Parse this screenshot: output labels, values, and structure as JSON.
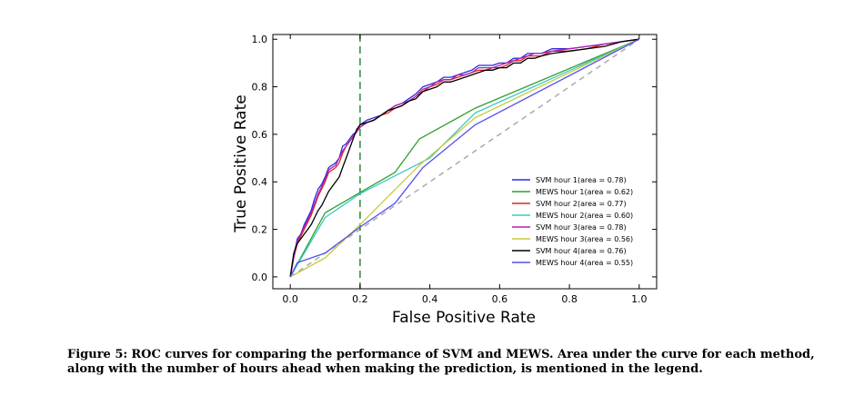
{
  "chart_data": {
    "type": "line",
    "title": "",
    "xlabel": "False Positive Rate",
    "ylabel": "True Positive Rate",
    "xlim": [
      -0.05,
      1.05
    ],
    "ylim": [
      -0.05,
      1.02
    ],
    "xticks": [
      "0.0",
      "0.2",
      "0.4",
      "0.6",
      "0.8",
      "1.0"
    ],
    "yticks": [
      "0.0",
      "0.2",
      "0.4",
      "0.6",
      "0.8",
      "1.0"
    ],
    "xtick_values": [
      0.0,
      0.2,
      0.4,
      0.6,
      0.8,
      1.0
    ],
    "ytick_values": [
      0.0,
      0.2,
      0.4,
      0.6,
      0.8,
      1.0
    ],
    "grid": false,
    "legend_position": "lower-right",
    "reference_lines": [
      {
        "type": "diagonal",
        "style": "dashed",
        "color": "#aaaaaa"
      },
      {
        "type": "vertical",
        "x": 0.2,
        "style": "dashed",
        "color": "#2e8b2e"
      }
    ],
    "series": [
      {
        "name": "SVM hour 1(area = 0.78)",
        "color": "#2b2bdb",
        "x": [
          0.0,
          0.01,
          0.02,
          0.03,
          0.04,
          0.05,
          0.06,
          0.07,
          0.08,
          0.09,
          0.1,
          0.11,
          0.12,
          0.13,
          0.14,
          0.15,
          0.16,
          0.17,
          0.18,
          0.19,
          0.2,
          0.22,
          0.24,
          0.26,
          0.28,
          0.3,
          0.32,
          0.34,
          0.36,
          0.38,
          0.4,
          0.42,
          0.44,
          0.46,
          0.48,
          0.5,
          0.52,
          0.54,
          0.56,
          0.58,
          0.6,
          0.62,
          0.64,
          0.66,
          0.68,
          0.7,
          0.72,
          0.75,
          0.8,
          0.85,
          0.9,
          0.95,
          1.0
        ],
        "y": [
          0.0,
          0.09,
          0.16,
          0.18,
          0.22,
          0.25,
          0.28,
          0.33,
          0.37,
          0.39,
          0.42,
          0.46,
          0.47,
          0.48,
          0.5,
          0.55,
          0.56,
          0.58,
          0.6,
          0.61,
          0.64,
          0.66,
          0.67,
          0.68,
          0.7,
          0.72,
          0.73,
          0.75,
          0.77,
          0.8,
          0.81,
          0.82,
          0.84,
          0.84,
          0.85,
          0.86,
          0.87,
          0.89,
          0.89,
          0.89,
          0.9,
          0.9,
          0.92,
          0.92,
          0.94,
          0.94,
          0.94,
          0.96,
          0.96,
          0.97,
          0.98,
          0.99,
          1.0
        ]
      },
      {
        "name": "MEWS hour 1(area = 0.62)",
        "color": "#2ea02e",
        "x": [
          0.0,
          0.1,
          0.3,
          0.37,
          0.53,
          1.0
        ],
        "y": [
          0.0,
          0.27,
          0.44,
          0.58,
          0.71,
          1.0
        ]
      },
      {
        "name": "SVM hour 2(area = 0.77)",
        "color": "#e02424",
        "x": [
          0.0,
          0.01,
          0.02,
          0.03,
          0.04,
          0.05,
          0.06,
          0.07,
          0.08,
          0.09,
          0.1,
          0.11,
          0.12,
          0.13,
          0.14,
          0.15,
          0.16,
          0.17,
          0.18,
          0.19,
          0.2,
          0.22,
          0.24,
          0.26,
          0.28,
          0.3,
          0.32,
          0.34,
          0.36,
          0.38,
          0.4,
          0.42,
          0.44,
          0.46,
          0.48,
          0.5,
          0.52,
          0.54,
          0.56,
          0.58,
          0.6,
          0.62,
          0.64,
          0.66,
          0.68,
          0.7,
          0.72,
          0.75,
          0.8,
          0.85,
          0.9,
          0.95,
          1.0
        ],
        "y": [
          0.0,
          0.08,
          0.14,
          0.17,
          0.2,
          0.23,
          0.26,
          0.3,
          0.34,
          0.37,
          0.4,
          0.44,
          0.45,
          0.46,
          0.48,
          0.52,
          0.55,
          0.57,
          0.59,
          0.61,
          0.63,
          0.65,
          0.66,
          0.68,
          0.69,
          0.71,
          0.72,
          0.74,
          0.76,
          0.78,
          0.8,
          0.81,
          0.83,
          0.83,
          0.84,
          0.85,
          0.86,
          0.87,
          0.87,
          0.88,
          0.88,
          0.89,
          0.91,
          0.91,
          0.93,
          0.93,
          0.93,
          0.95,
          0.95,
          0.96,
          0.98,
          0.99,
          1.0
        ]
      },
      {
        "name": "MEWS hour 2(area = 0.60)",
        "color": "#3cc8c8",
        "x": [
          0.0,
          0.1,
          0.2,
          0.4,
          0.53,
          1.0
        ],
        "y": [
          0.0,
          0.25,
          0.35,
          0.5,
          0.69,
          1.0
        ]
      },
      {
        "name": "SVM hour 3(area = 0.78)",
        "color": "#b020b0",
        "x": [
          0.0,
          0.01,
          0.02,
          0.03,
          0.04,
          0.05,
          0.06,
          0.07,
          0.08,
          0.09,
          0.1,
          0.11,
          0.12,
          0.13,
          0.14,
          0.15,
          0.16,
          0.17,
          0.18,
          0.19,
          0.2,
          0.22,
          0.24,
          0.26,
          0.28,
          0.3,
          0.32,
          0.34,
          0.36,
          0.38,
          0.4,
          0.42,
          0.44,
          0.46,
          0.48,
          0.5,
          0.52,
          0.54,
          0.56,
          0.58,
          0.6,
          0.62,
          0.64,
          0.66,
          0.68,
          0.7,
          0.72,
          0.75,
          0.8,
          0.85,
          0.9,
          0.95,
          1.0
        ],
        "y": [
          0.0,
          0.08,
          0.15,
          0.18,
          0.21,
          0.24,
          0.27,
          0.31,
          0.35,
          0.38,
          0.41,
          0.45,
          0.46,
          0.47,
          0.5,
          0.53,
          0.55,
          0.57,
          0.59,
          0.61,
          0.63,
          0.65,
          0.66,
          0.68,
          0.7,
          0.72,
          0.73,
          0.74,
          0.76,
          0.79,
          0.8,
          0.82,
          0.83,
          0.83,
          0.85,
          0.85,
          0.86,
          0.88,
          0.88,
          0.88,
          0.89,
          0.9,
          0.91,
          0.92,
          0.93,
          0.94,
          0.94,
          0.95,
          0.96,
          0.97,
          0.98,
          0.99,
          1.0
        ]
      },
      {
        "name": "MEWS hour 3(area = 0.56)",
        "color": "#c8c83c",
        "x": [
          0.0,
          0.1,
          0.2,
          0.37,
          0.53,
          1.0
        ],
        "y": [
          0.0,
          0.08,
          0.22,
          0.47,
          0.67,
          1.0
        ]
      },
      {
        "name": "SVM hour 4(area = 0.76)",
        "color": "#000000",
        "x": [
          0.0,
          0.01,
          0.02,
          0.03,
          0.04,
          0.05,
          0.06,
          0.07,
          0.08,
          0.09,
          0.1,
          0.11,
          0.12,
          0.13,
          0.14,
          0.15,
          0.16,
          0.17,
          0.18,
          0.19,
          0.2,
          0.22,
          0.24,
          0.26,
          0.28,
          0.3,
          0.32,
          0.34,
          0.36,
          0.38,
          0.4,
          0.42,
          0.44,
          0.46,
          0.48,
          0.5,
          0.52,
          0.54,
          0.56,
          0.58,
          0.6,
          0.62,
          0.64,
          0.66,
          0.68,
          0.7,
          0.72,
          0.75,
          0.8,
          0.85,
          0.9,
          0.95,
          1.0
        ],
        "y": [
          0.0,
          0.1,
          0.14,
          0.16,
          0.18,
          0.2,
          0.22,
          0.25,
          0.28,
          0.3,
          0.33,
          0.36,
          0.38,
          0.4,
          0.42,
          0.46,
          0.5,
          0.54,
          0.58,
          0.62,
          0.64,
          0.65,
          0.66,
          0.68,
          0.7,
          0.71,
          0.72,
          0.74,
          0.75,
          0.78,
          0.79,
          0.8,
          0.82,
          0.82,
          0.83,
          0.84,
          0.85,
          0.86,
          0.87,
          0.87,
          0.88,
          0.88,
          0.9,
          0.9,
          0.92,
          0.92,
          0.93,
          0.94,
          0.95,
          0.96,
          0.97,
          0.99,
          1.0
        ]
      },
      {
        "name": "MEWS hour 4(area = 0.55)",
        "color": "#5050f0",
        "x": [
          0.0,
          0.02,
          0.1,
          0.2,
          0.3,
          0.38,
          0.53,
          1.0
        ],
        "y": [
          0.0,
          0.06,
          0.1,
          0.21,
          0.31,
          0.46,
          0.64,
          1.0
        ]
      }
    ]
  },
  "caption": {
    "label": "Figure 5:",
    "text": "ROC curves for comparing the performance of SVM and MEWS. Area under the curve for each method, along with the number of hours ahead when making the prediction, is mentioned in the legend."
  }
}
